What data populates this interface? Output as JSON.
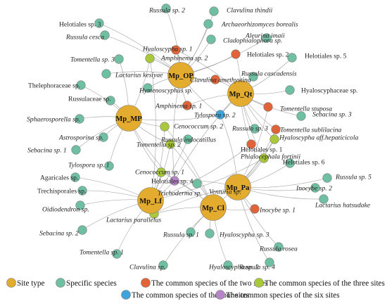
{
  "colors": {
    "site": "#e3ac2f",
    "specific": "#6fc0a2",
    "two": "#e0643a",
    "three": "#a9c93a",
    "four": "#3fa4dc",
    "six": "#b784c8",
    "edge": "#9a9a9a"
  },
  "sites": [
    {
      "id": "OP",
      "label": "Mp_OP"
    },
    {
      "id": "MP",
      "label": "Mp_MP"
    },
    {
      "id": "Qt",
      "label": "Mp_Qt"
    },
    {
      "id": "Pa",
      "label": "Mp_Pa"
    },
    {
      "id": "Lf",
      "label": "Mp_Lf"
    },
    {
      "id": "Cl",
      "label": "Mp_Cl"
    }
  ],
  "species": [
    {
      "label": "Russula sp. 2",
      "italic": true,
      "type": "specific"
    },
    {
      "label": "Clavulina thindii",
      "italic": true,
      "type": "specific"
    },
    {
      "label": "Archaeorhizomyces borealis",
      "italic": true,
      "type": "specific"
    },
    {
      "label": "Helotiales sp. 3",
      "italic": false,
      "type": "specific"
    },
    {
      "label": "Russula cesca",
      "italic": true,
      "type": "specific"
    },
    {
      "label": "Cladophialophora sp.",
      "italic": true,
      "type": "specific"
    },
    {
      "label": "Aleurina imaii",
      "italic": true,
      "type": "specific"
    },
    {
      "label": "Hyaloscypha sp. 1",
      "italic": true,
      "type": "two"
    },
    {
      "label": "Helotiales sp. 2",
      "italic": false,
      "type": "two"
    },
    {
      "label": "Helotiales sp. 5",
      "italic": false,
      "type": "specific"
    },
    {
      "label": "Tomentella sp. 3",
      "italic": true,
      "type": "specific"
    },
    {
      "label": "Amphinema sp. 2",
      "italic": true,
      "type": "three"
    },
    {
      "label": "Lactarius kesiyae",
      "italic": true,
      "type": "specific"
    },
    {
      "label": "Russula cascadensis",
      "italic": true,
      "type": "specific"
    },
    {
      "label": "Clavulina amethystina",
      "italic": true,
      "type": "two"
    },
    {
      "label": "Thelephoraceae sp.",
      "italic": false,
      "type": "specific"
    },
    {
      "label": "Hymenoscyphus sp.",
      "italic": true,
      "type": "specific"
    },
    {
      "label": "Hyaloscyphaceae sp.",
      "italic": false,
      "type": "specific"
    },
    {
      "label": "Russulaceae sp.",
      "italic": false,
      "type": "specific"
    },
    {
      "label": "Amphinema sp. 1",
      "italic": true,
      "type": "two"
    },
    {
      "label": "Tomentella stuposa",
      "italic": true,
      "type": "two"
    },
    {
      "label": "Tylospora sp. 2",
      "italic": true,
      "type": "four"
    },
    {
      "label": "Sebacina sp. 3",
      "italic": true,
      "type": "specific"
    },
    {
      "label": "Sphaerosporella sp.",
      "italic": true,
      "type": "specific"
    },
    {
      "label": "Cenococcum sp. 2",
      "italic": true,
      "type": "three"
    },
    {
      "label": "Russula sp. 3",
      "italic": true,
      "type": "specific"
    },
    {
      "label": "Tomentella sublilacina",
      "italic": true,
      "type": "two"
    },
    {
      "label": "Astrosporina sp.",
      "italic": true,
      "type": "specific"
    },
    {
      "label": "Russula indocatillus",
      "italic": true,
      "type": "specific"
    },
    {
      "label": "Hyaloscypha aff.hepaticicola",
      "italic": true,
      "type": "three"
    },
    {
      "label": "Sebacina sp. 1",
      "italic": true,
      "type": "specific"
    },
    {
      "label": "Tomentella sp. 2",
      "italic": true,
      "type": "three"
    },
    {
      "label": "Helotiales sp. 1",
      "italic": false,
      "type": "two"
    },
    {
      "label": "Phialocephala fortinii",
      "italic": true,
      "type": "three"
    },
    {
      "label": "Tylospora sp. 1",
      "italic": true,
      "type": "specific"
    },
    {
      "label": "Helotiales sp. 6",
      "italic": false,
      "type": "specific"
    },
    {
      "label": "Cenococcum sp. 1",
      "italic": true,
      "type": "three"
    },
    {
      "label": "Helotiales sp. 4",
      "italic": false,
      "type": "six"
    },
    {
      "label": "Agaricales sp.",
      "italic": false,
      "type": "specific"
    },
    {
      "label": "Venturia sp.",
      "italic": true,
      "type": "specific"
    },
    {
      "label": "Russula sp. 5",
      "italic": true,
      "type": "specific"
    },
    {
      "label": "Inocybe sp. 2",
      "italic": true,
      "type": "specific"
    },
    {
      "label": "Trechisporales sp.",
      "italic": false,
      "type": "specific"
    },
    {
      "label": "Trichoderma sp.",
      "italic": true,
      "type": "specific"
    },
    {
      "label": "Lactarius hatsudake",
      "italic": true,
      "type": "specific"
    },
    {
      "label": "Oidiodendron sp.",
      "italic": true,
      "type": "specific"
    },
    {
      "label": "Inocybe sp. 1",
      "italic": true,
      "type": "two"
    },
    {
      "label": "Lactarius parallelus",
      "italic": true,
      "type": "three"
    },
    {
      "label": "Sebacina sp. 2",
      "italic": true,
      "type": "specific"
    },
    {
      "label": "Russula sp. 1",
      "italic": true,
      "type": "specific"
    },
    {
      "label": "Hyaloscypha sp. 3",
      "italic": true,
      "type": "specific"
    },
    {
      "label": "Russula rosea",
      "italic": true,
      "type": "specific"
    },
    {
      "label": "Russula sp. 4",
      "italic": true,
      "type": "specific"
    },
    {
      "label": "Tomentella sp. 1",
      "italic": true,
      "type": "specific"
    },
    {
      "label": "Clavulina sp.",
      "italic": true,
      "type": "specific"
    },
    {
      "label": "Hyaloscypha sp. 2",
      "italic": true,
      "type": "specific"
    }
  ],
  "legend": [
    {
      "type": "site",
      "label": "Site type"
    },
    {
      "type": "specific",
      "label": "Specific species"
    },
    {
      "type": "two",
      "label": "The common species of the two sites"
    },
    {
      "type": "three",
      "label": "The common species of the three sites"
    },
    {
      "type": "four",
      "label": "The common species of the four sites"
    },
    {
      "type": "six",
      "label": "The common species of the six sites"
    }
  ]
}
